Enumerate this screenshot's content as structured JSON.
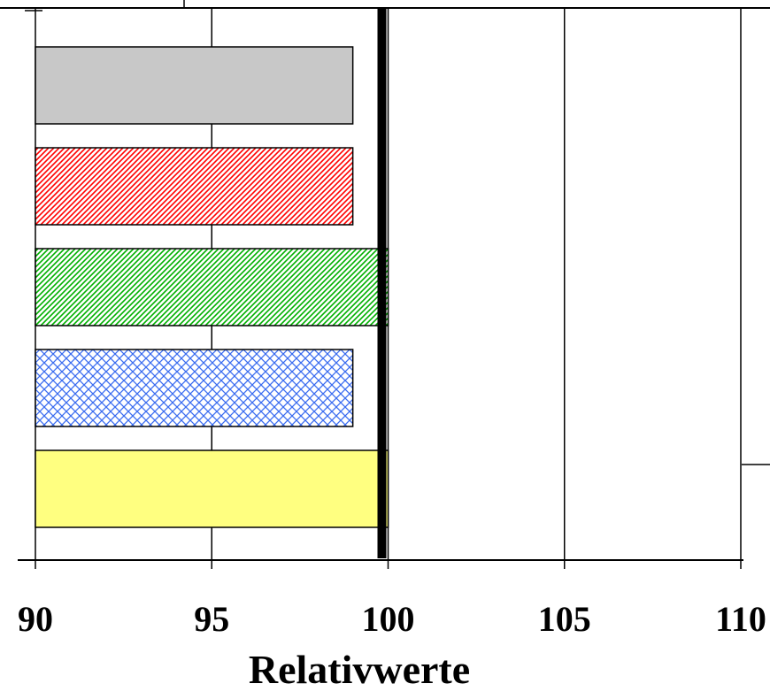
{
  "chart_data": {
    "type": "bar",
    "orientation": "horizontal",
    "xlabel": "Relativwerte",
    "xlim": [
      90,
      110
    ],
    "xticks": [
      "90",
      "95",
      "100",
      "105",
      "110"
    ],
    "reference_line": 100,
    "grid": true,
    "bars": [
      {
        "value": 99.0,
        "fill": "#c8c8c8",
        "pattern": "solid"
      },
      {
        "value": 99.0,
        "fill": "#ff0000",
        "pattern": "diagonal-stripes"
      },
      {
        "value": 100.0,
        "fill": "#00b000",
        "pattern": "diagonal-stripes"
      },
      {
        "value": 99.0,
        "fill": "#3a6cf0",
        "pattern": "crosshatch"
      },
      {
        "value": 100.0,
        "fill": "#ffff80",
        "pattern": "solid"
      }
    ]
  }
}
